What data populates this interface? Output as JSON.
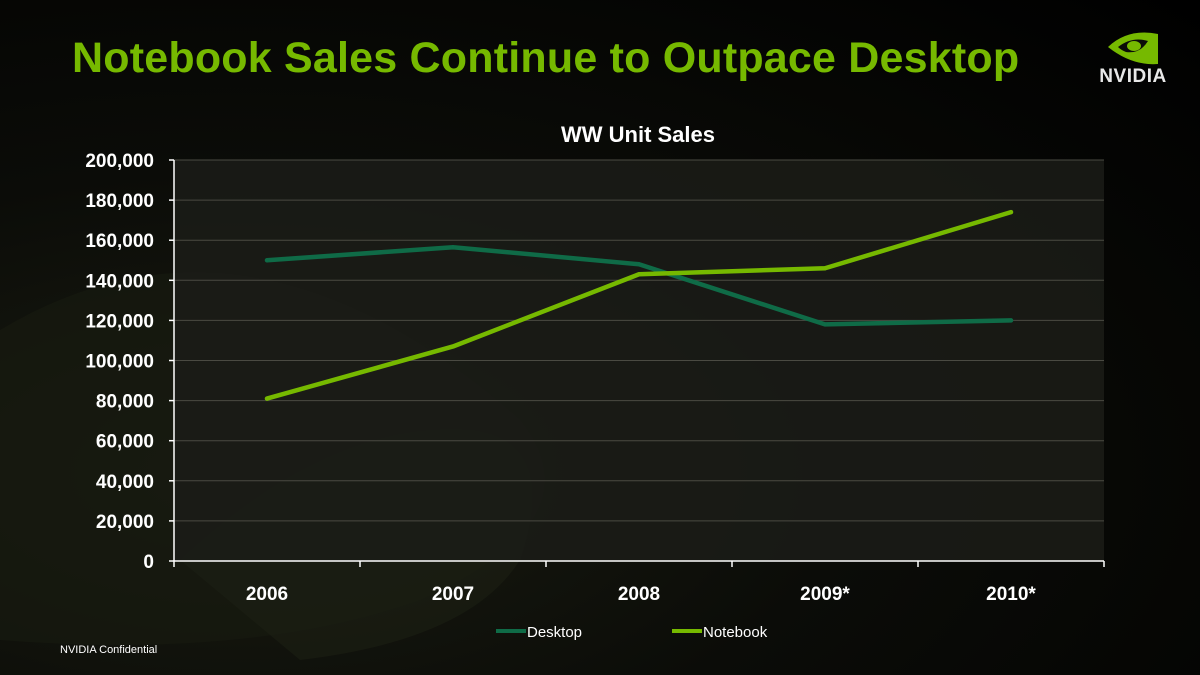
{
  "slide": {
    "title": "Notebook Sales Continue to Outpace Desktop",
    "logo_text": "NVIDIA",
    "footer": "NVIDIA Confidential"
  },
  "colors": {
    "title": "#76b900",
    "desktop": "#0f6b47",
    "notebook": "#76b900",
    "plot_bg": "#1b1c18",
    "grid": "#4a4a42"
  },
  "chart_data": {
    "type": "line",
    "title": "WW Unit Sales",
    "categories": [
      "2006",
      "2007",
      "2008",
      "2009*",
      "2010*"
    ],
    "series": [
      {
        "name": "Desktop",
        "values": [
          150000,
          156500,
          148000,
          118000,
          120000
        ]
      },
      {
        "name": "Notebook",
        "values": [
          81000,
          107000,
          143000,
          146000,
          174000
        ]
      }
    ],
    "ylim": [
      0,
      200000
    ],
    "yticks": [
      0,
      20000,
      40000,
      60000,
      80000,
      100000,
      120000,
      140000,
      160000,
      180000,
      200000
    ],
    "ytick_labels": [
      "0",
      "20,000",
      "40,000",
      "60,000",
      "80,000",
      "100,000",
      "120,000",
      "140,000",
      "160,000",
      "180,000",
      "200,000"
    ],
    "grid": true,
    "legend_position": "bottom"
  }
}
